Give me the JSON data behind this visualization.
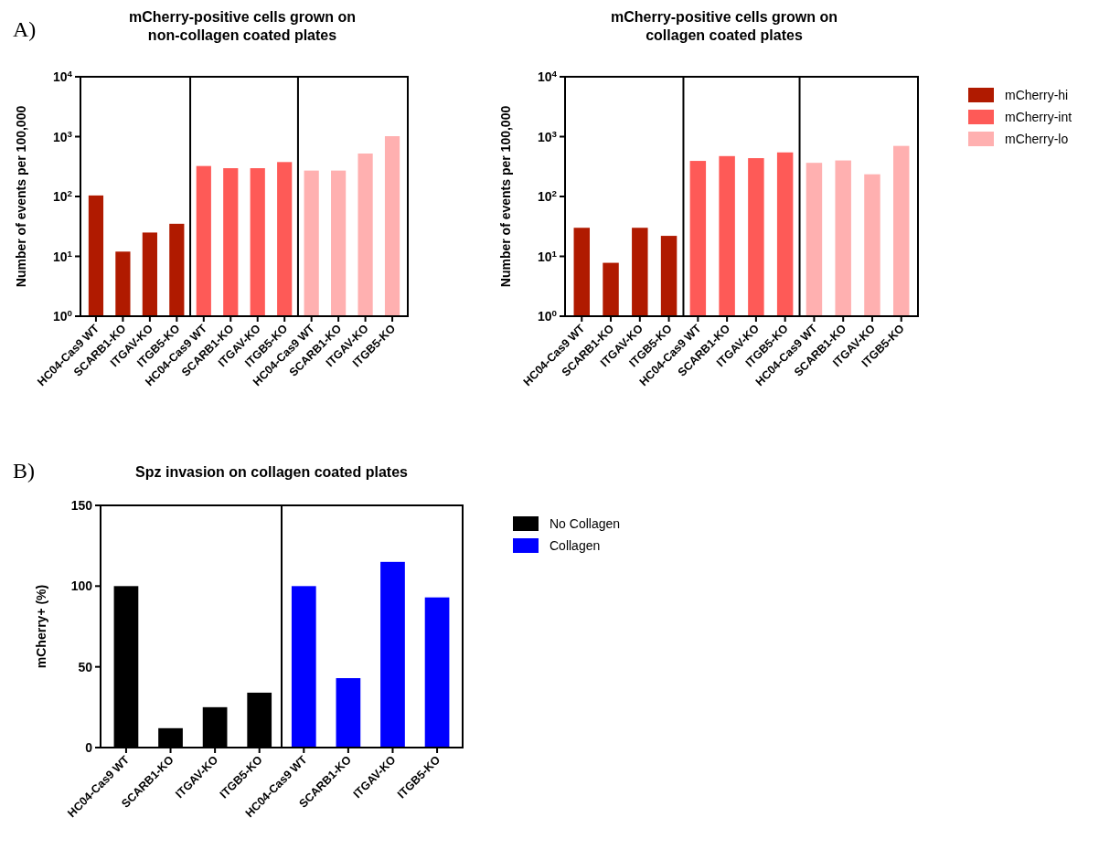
{
  "chart_data": [
    {
      "type": "bar",
      "title": "mCherry-positive cells grown on\nnon-collagen coated plates",
      "ylabel": "Number of events per 100,000",
      "annotations": [
        "A)"
      ],
      "categories": [
        "HC04-Cas9 WT",
        "SCARB1-KO",
        "ITGAV-KO",
        "ITGB5-KO",
        "HC04-Cas9 WT",
        "SCARB1-KO",
        "ITGAV-KO",
        "ITGB5-KO",
        "HC04-Cas9 WT",
        "SCARB1-KO",
        "ITGAV-KO",
        "ITGB5-KO"
      ],
      "series": [
        {
          "color": "#b01a00",
          "values": [
            104,
            12,
            25,
            35,
            null,
            null,
            null,
            null,
            null,
            null,
            null,
            null
          ]
        },
        {
          "color": "#fe5a57",
          "values": [
            null,
            null,
            null,
            null,
            323,
            297,
            297,
            376,
            null,
            null,
            null,
            null
          ]
        },
        {
          "color": "#ffb0b0",
          "values": [
            null,
            null,
            null,
            null,
            null,
            null,
            null,
            null,
            271,
            271,
            522,
            1018
          ]
        }
      ],
      "log": true,
      "ylim": [
        1,
        10000
      ],
      "yticks": [
        {
          "value": 1,
          "label": "10$^{0}$"
        },
        {
          "value": 10,
          "label": "10$^{1}$"
        },
        {
          "value": 100,
          "label": "10$^{2}$"
        },
        {
          "value": 1000,
          "label": "10$^{3}$"
        },
        {
          "value": 10000,
          "label": "10$^{4}$"
        }
      ],
      "grid": false,
      "legend": false
    },
    {
      "type": "bar",
      "title": "mCherry-positive cells grown on\ncollagen coated plates",
      "ylabel": "Number of events per 100,000",
      "categories": [
        "HC04-Cas9 WT",
        "SCARB1-KO",
        "ITGAV-KO",
        "ITGB5-KO",
        "HC04-Cas9 WT",
        "SCARB1-KO",
        "ITGAV-KO",
        "ITGB5-KO",
        "HC04-Cas9 WT",
        "SCARB1-KO",
        "ITGAV-KO",
        "ITGB5-KO"
      ],
      "series": [
        {
          "name": "mCherry-hi",
          "color": "#b01a00",
          "values": [
            30,
            7.8,
            30,
            22,
            null,
            null,
            null,
            null,
            null,
            null,
            null,
            null
          ]
        },
        {
          "name": "mCherry-int",
          "color": "#fe5a57",
          "values": [
            null,
            null,
            null,
            null,
            393,
            473,
            437,
            545,
            null,
            null,
            null,
            null
          ]
        },
        {
          "name": "mCherry-lo",
          "color": "#ffb0b0",
          "values": [
            null,
            null,
            null,
            null,
            null,
            null,
            null,
            null,
            365,
            400,
            235,
            700
          ]
        }
      ],
      "log": true,
      "ylim": [
        1,
        10000
      ],
      "yticks": [
        {
          "value": 1,
          "label": "10$^{0}$"
        },
        {
          "value": 10,
          "label": "10$^{1}$"
        },
        {
          "value": 100,
          "label": "10$^{2}$"
        },
        {
          "value": 1000,
          "label": "10$^{3}$"
        },
        {
          "value": 10000,
          "label": "10$^{4}$"
        }
      ],
      "grid": false,
      "legend": "right"
    },
    {
      "type": "bar",
      "title": "Spz invasion on collagen coated plates",
      "ylabel": "mCherry+ (%)",
      "annotations": [
        "B)"
      ],
      "categories": [
        "HC04-Cas9 WT",
        "SCARB1-KO",
        "ITGAV-KO",
        "ITGB5-KO",
        "HC04-Cas9 WT",
        "SCARB1-KO",
        "ITGAV-KO",
        "ITGB5-KO"
      ],
      "series": [
        {
          "name": "No Collagen",
          "color": "#000000",
          "values": [
            100,
            12,
            25,
            34,
            null,
            null,
            null,
            null
          ]
        },
        {
          "name": "Collagen",
          "color": "#0000ff",
          "values": [
            null,
            null,
            null,
            null,
            100,
            43,
            115,
            93
          ]
        }
      ],
      "ylim": [
        0,
        150
      ],
      "yticks": [
        0,
        50,
        100,
        150
      ],
      "grid": false,
      "legend": "right"
    }
  ]
}
